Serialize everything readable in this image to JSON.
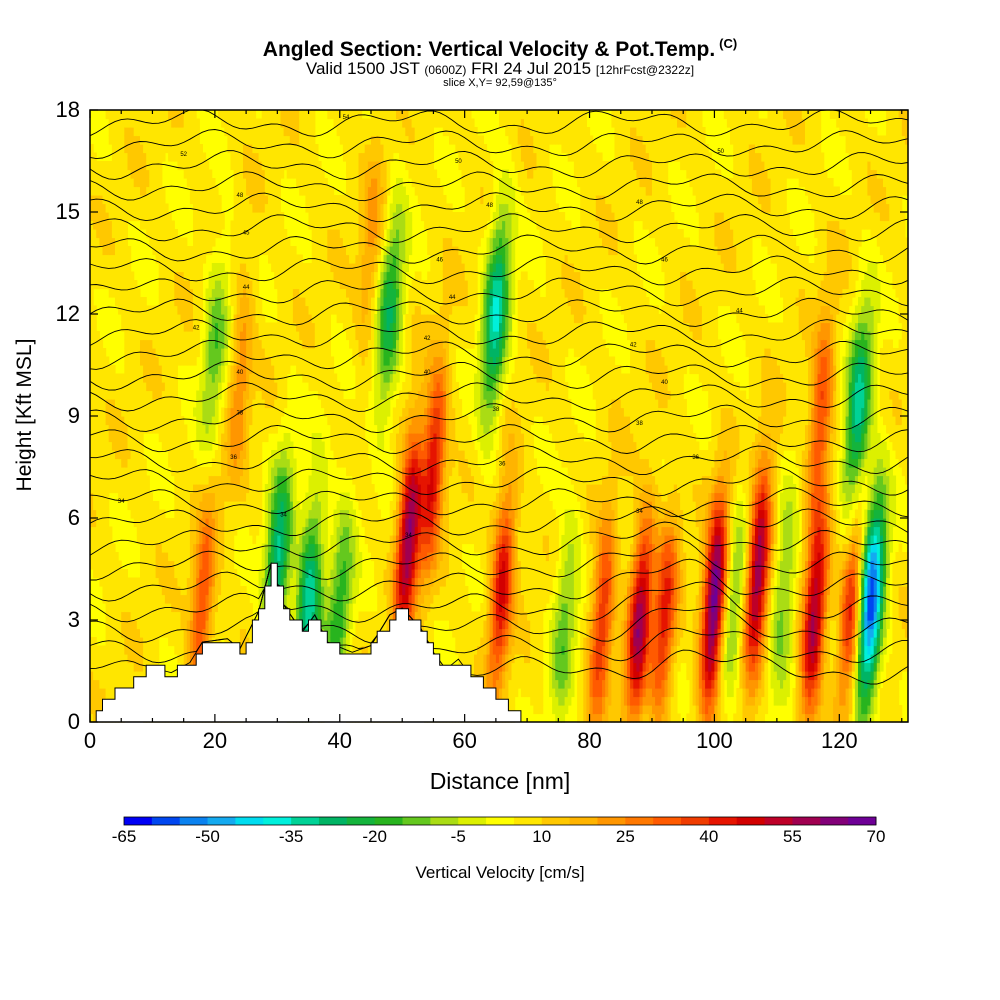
{
  "header": {
    "title": "Angled Section: Vertical Velocity & Pot.Temp.",
    "title_mark": "(C)",
    "valid_prefix": "Valid 1500 JST",
    "valid_zulu": "(0600Z)",
    "valid_date": "FRI 24 Jul 2015",
    "forecast": "[12hrFcst@2322z]",
    "slice": "slice X,Y= 92,59@135°"
  },
  "chart_data": {
    "type": "heatmap",
    "xlabel": "Distance [nm]",
    "ylabel": "Height [Kft MSL]",
    "xlim": [
      0,
      131
    ],
    "ylim": [
      0,
      18
    ],
    "xticks": [
      0,
      20,
      40,
      60,
      80,
      100,
      120
    ],
    "yticks": [
      0,
      3,
      6,
      9,
      12,
      15,
      18
    ],
    "colorbar": {
      "label": "Vertical Velocity [cm/s]",
      "ticks": [
        -65,
        -50,
        -35,
        -20,
        -5,
        10,
        25,
        40,
        55,
        70
      ],
      "range": [
        -65,
        70
      ],
      "step": 5,
      "colors": [
        "#0000f5",
        "#0046f0",
        "#0a82f0",
        "#14aaf0",
        "#00dcf0",
        "#00f0dc",
        "#00d296",
        "#00b464",
        "#14b43c",
        "#28b41e",
        "#64c81e",
        "#aadc14",
        "#dcf000",
        "#ffff00",
        "#ffe600",
        "#ffc800",
        "#ffb400",
        "#ff9600",
        "#ff7800",
        "#ff5a00",
        "#f03c00",
        "#e61400",
        "#d20000",
        "#be0028",
        "#a00050",
        "#820078",
        "#6e0096"
      ]
    },
    "terrain": [
      [
        0,
        0
      ],
      [
        1,
        0.4
      ],
      [
        5,
        1
      ],
      [
        9,
        1.6
      ],
      [
        13,
        1.4
      ],
      [
        16,
        1.7
      ],
      [
        18,
        2.3
      ],
      [
        22,
        2.4
      ],
      [
        24,
        2.1
      ],
      [
        27,
        3.2
      ],
      [
        29,
        4.6
      ],
      [
        31,
        3.4
      ],
      [
        34,
        2.6
      ],
      [
        36,
        3.1
      ],
      [
        38,
        2.3
      ],
      [
        42,
        2.0
      ],
      [
        45,
        2.2
      ],
      [
        48,
        3.1
      ],
      [
        50,
        3.3
      ],
      [
        53,
        2.7
      ],
      [
        55,
        2.0
      ],
      [
        57,
        1.5
      ],
      [
        59,
        1.8
      ],
      [
        61,
        1.3
      ],
      [
        64,
        0.9
      ],
      [
        66,
        0.6
      ],
      [
        68,
        0.3
      ],
      [
        70,
        0.0
      ],
      [
        131,
        0.0
      ]
    ],
    "updrafts": [
      {
        "x": 18,
        "z": 3.5,
        "w": 30
      },
      {
        "x": 24,
        "z": 10,
        "w": 18
      },
      {
        "x": 45,
        "z": 14,
        "w": 15
      },
      {
        "x": 51,
        "z": 5.5,
        "w": 55
      },
      {
        "x": 55,
        "z": 7.5,
        "w": 40
      },
      {
        "x": 66,
        "z": 4,
        "w": 40
      },
      {
        "x": 82,
        "z": 3,
        "w": 35
      },
      {
        "x": 88,
        "z": 3,
        "w": 50
      },
      {
        "x": 92,
        "z": 3,
        "w": 35
      },
      {
        "x": 100,
        "z": 3.5,
        "w": 65
      },
      {
        "x": 107,
        "z": 4.5,
        "w": 55
      },
      {
        "x": 116,
        "z": 3,
        "w": 50
      },
      {
        "x": 122,
        "z": 3.5,
        "w": 40
      },
      {
        "x": 117,
        "z": 9,
        "w": 30
      }
    ],
    "downdrafts": [
      {
        "x": 20,
        "z": 11,
        "w": -20
      },
      {
        "x": 30,
        "z": 4.5,
        "w": -40
      },
      {
        "x": 35,
        "z": 3.5,
        "w": -40
      },
      {
        "x": 40,
        "z": 3.5,
        "w": -25
      },
      {
        "x": 48,
        "z": 12,
        "w": -30
      },
      {
        "x": 65,
        "z": 12,
        "w": -40
      },
      {
        "x": 76,
        "z": 3,
        "w": -20
      },
      {
        "x": 103,
        "z": 3.5,
        "w": -20
      },
      {
        "x": 111,
        "z": 3.5,
        "w": -20
      },
      {
        "x": 125,
        "z": 3.5,
        "w": -65
      },
      {
        "x": 123,
        "z": 9,
        "w": -40
      }
    ],
    "isentrope_labels": [
      {
        "x": 15,
        "z": 16.7,
        "text": "52"
      },
      {
        "x": 24,
        "z": 15.5,
        "text": "48"
      },
      {
        "x": 25,
        "z": 14.4,
        "text": "45"
      },
      {
        "x": 25,
        "z": 12.8,
        "text": "44"
      },
      {
        "x": 17,
        "z": 11.6,
        "text": "42"
      },
      {
        "x": 24,
        "z": 10.3,
        "text": "40"
      },
      {
        "x": 24,
        "z": 9.1,
        "text": "38"
      },
      {
        "x": 23,
        "z": 7.8,
        "text": "36"
      },
      {
        "x": 5,
        "z": 6.5,
        "text": "34"
      },
      {
        "x": 31,
        "z": 6.1,
        "text": "34"
      },
      {
        "x": 41,
        "z": 17.8,
        "text": "54"
      },
      {
        "x": 59,
        "z": 16.5,
        "text": "50"
      },
      {
        "x": 64,
        "z": 15.2,
        "text": "48"
      },
      {
        "x": 56,
        "z": 13.6,
        "text": "46"
      },
      {
        "x": 58,
        "z": 12.5,
        "text": "44"
      },
      {
        "x": 54,
        "z": 11.3,
        "text": "42"
      },
      {
        "x": 54,
        "z": 10.3,
        "text": "40"
      },
      {
        "x": 65,
        "z": 9.2,
        "text": "38"
      },
      {
        "x": 66,
        "z": 7.6,
        "text": "36"
      },
      {
        "x": 51,
        "z": 5.5,
        "text": "34"
      },
      {
        "x": 101,
        "z": 16.8,
        "text": "50"
      },
      {
        "x": 88,
        "z": 15.3,
        "text": "48"
      },
      {
        "x": 92,
        "z": 13.6,
        "text": "46"
      },
      {
        "x": 104,
        "z": 12.1,
        "text": "44"
      },
      {
        "x": 87,
        "z": 11.1,
        "text": "42"
      },
      {
        "x": 92,
        "z": 10.0,
        "text": "40"
      },
      {
        "x": 88,
        "z": 8.8,
        "text": "38"
      },
      {
        "x": 97,
        "z": 7.8,
        "text": "36"
      },
      {
        "x": 88,
        "z": 6.2,
        "text": "34"
      }
    ]
  }
}
